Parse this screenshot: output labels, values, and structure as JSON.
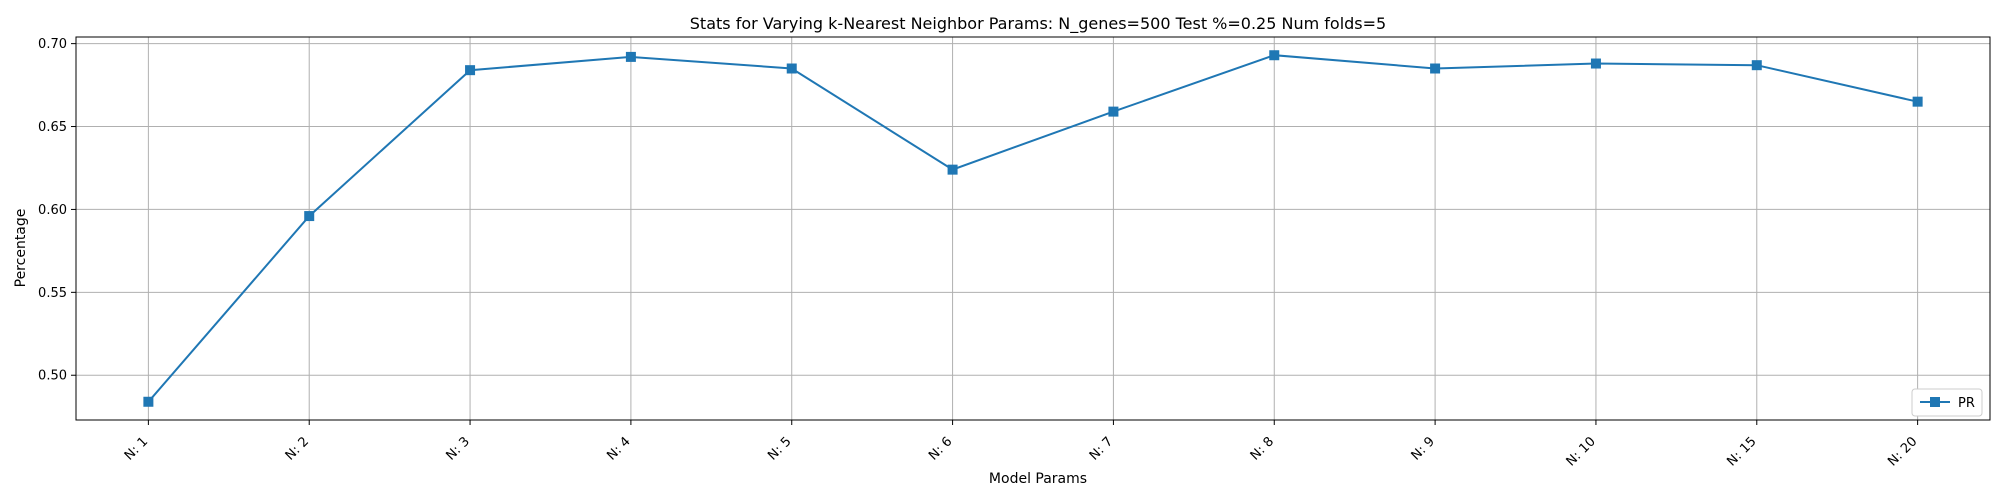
{
  "chart_data": {
    "type": "line",
    "title": "Stats for Varying k-Nearest Neighbor Params: N_genes=500 Test %=0.25 Num folds=5",
    "xlabel": "Model Params",
    "ylabel": "Percentage",
    "categories": [
      "N: 1",
      "N: 2",
      "N: 3",
      "N: 4",
      "N: 5",
      "N: 6",
      "N: 7",
      "N: 8",
      "N: 9",
      "N: 10",
      "N: 15",
      "N: 20"
    ],
    "yticks": [
      "0.50",
      "0.55",
      "0.60",
      "0.65",
      "0.70"
    ],
    "ylim": [
      0.473,
      0.704
    ],
    "grid": true,
    "legend_position": "lower-right",
    "series": [
      {
        "name": "PR",
        "color": "#1f77b4",
        "marker": "square",
        "values": [
          0.484,
          0.596,
          0.684,
          0.692,
          0.685,
          0.624,
          0.659,
          0.693,
          0.685,
          0.688,
          0.687,
          0.665
        ]
      }
    ]
  }
}
